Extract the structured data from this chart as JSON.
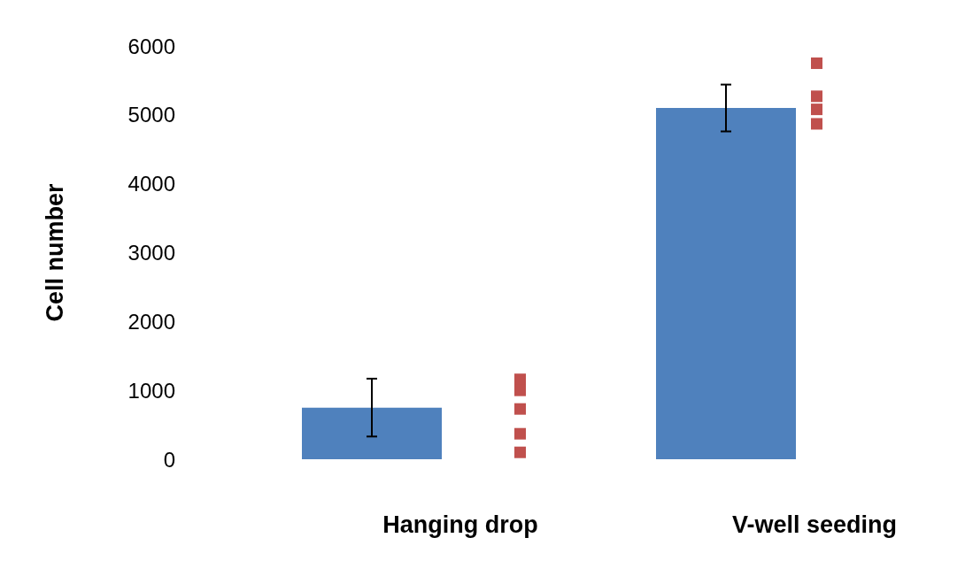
{
  "chart_data": {
    "type": "bar",
    "ylabel": "Cell number",
    "categories": [
      "Hanging drop",
      "V-well seeding"
    ],
    "ylim": [
      0,
      6000
    ],
    "yticks": [
      0,
      1000,
      2000,
      3000,
      4000,
      5000,
      6000
    ],
    "series": [
      {
        "color": "#4f81bd",
        "values": [
          750,
          5100
        ],
        "errors": [
          420,
          340
        ]
      },
      {
        "type": "scatter",
        "color": "#c0504d",
        "marker": "square",
        "x": [
          "Hanging drop",
          "Hanging drop",
          "Hanging drop",
          "Hanging drop",
          "Hanging drop",
          "V-well seeding",
          "V-well seeding",
          "V-well seeding",
          "V-well seeding"
        ],
        "values": [
          1160,
          1000,
          730,
          370,
          100,
          5750,
          5270,
          5080,
          4870
        ]
      }
    ]
  }
}
